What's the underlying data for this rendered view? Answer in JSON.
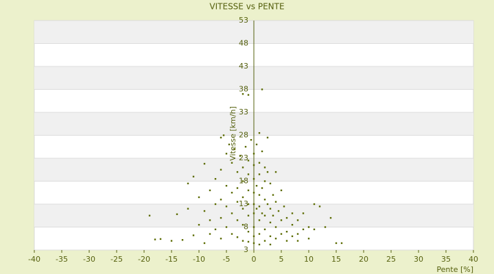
{
  "chart_data": {
    "type": "scatter",
    "title": "VITESSE vs PENTE",
    "x_label": "Pente [%]",
    "y_label": "Vitesse [km/h]",
    "color": "#5a6a00",
    "xlim": [
      -40,
      40
    ],
    "xticks": [
      -40,
      -35,
      -30,
      -25,
      -20,
      -15,
      -10,
      -5,
      0,
      5,
      10,
      15,
      20,
      25,
      30,
      35,
      40
    ],
    "ylim": [
      3,
      53
    ],
    "yticks": [
      3,
      8,
      13,
      18,
      23,
      28,
      33,
      38,
      43,
      48,
      53
    ],
    "grid": true,
    "x": [
      -19,
      -18,
      -17,
      -15,
      -14,
      -13,
      -12,
      -12,
      -11,
      -11,
      -10,
      -10,
      -9,
      -9,
      -9,
      -8,
      -8,
      -8,
      -7,
      -7,
      -7,
      -6,
      -6,
      -6,
      -6,
      -6,
      -5.5,
      -5,
      -5,
      -5,
      -5,
      -4.5,
      -4,
      -4,
      -4,
      -4,
      -3.5,
      -3,
      -3,
      -3,
      -3,
      -3,
      -2.5,
      -2,
      -2,
      -2,
      -2,
      -2,
      -2,
      -2,
      -1.5,
      -1,
      -1,
      -1,
      -1,
      -1,
      -1,
      -1,
      -1,
      -0.5,
      0,
      0,
      0,
      0,
      0,
      0,
      0,
      0,
      0,
      0.5,
      0.5,
      0.5,
      1,
      1,
      1,
      1,
      1,
      1,
      1,
      1,
      1.5,
      1.5,
      1.5,
      1.5,
      2,
      2,
      2,
      2,
      2,
      2,
      2.5,
      2.5,
      2.5,
      3,
      3,
      3,
      3,
      3,
      3.5,
      3.5,
      4,
      4,
      4,
      4,
      4.5,
      5,
      5,
      5,
      5.5,
      6,
      6,
      6,
      7,
      7,
      7,
      8,
      8,
      8,
      9,
      9,
      10,
      10,
      11,
      11,
      12,
      13,
      14,
      15,
      16
    ],
    "y": [
      10.5,
      5.3,
      5.4,
      5.0,
      10.8,
      5.2,
      12.0,
      17.5,
      19.0,
      6.2,
      14.5,
      8.5,
      21.8,
      11.5,
      4.5,
      16.0,
      9.5,
      6.5,
      18.5,
      13.0,
      7.5,
      27.5,
      20.5,
      14.0,
      10.0,
      5.5,
      28.0,
      24.0,
      17.0,
      12.5,
      8.0,
      26.0,
      22.0,
      15.5,
      11.0,
      6.5,
      25.0,
      20.0,
      16.5,
      13.5,
      9.5,
      5.8,
      23.5,
      37.0,
      21.0,
      18.0,
      14.5,
      12.0,
      8.5,
      5.0,
      25.5,
      36.8,
      22.5,
      19.5,
      16.0,
      13.0,
      10.5,
      7.0,
      4.8,
      27.0,
      24.0,
      21.5,
      18.5,
      15.5,
      13.0,
      11.0,
      8.0,
      6.0,
      4.5,
      26.0,
      17.0,
      12.0,
      28.5,
      22.0,
      19.5,
      15.0,
      12.5,
      9.5,
      6.5,
      4.2,
      38.0,
      24.5,
      16.5,
      11.0,
      21.0,
      18.0,
      14.0,
      10.5,
      7.5,
      5.0,
      27.5,
      20.0,
      13.0,
      17.5,
      12.0,
      9.0,
      6.0,
      4.2,
      15.0,
      10.5,
      20.0,
      13.5,
      8.0,
      5.5,
      11.5,
      16.0,
      9.5,
      6.5,
      12.5,
      10.0,
      7.0,
      5.0,
      11.0,
      8.5,
      6.0,
      9.5,
      6.5,
      5.0,
      11.0,
      7.5,
      8.0,
      5.5,
      7.5,
      13.0,
      12.5,
      8.0,
      10.0,
      4.5,
      4.5
    ]
  }
}
